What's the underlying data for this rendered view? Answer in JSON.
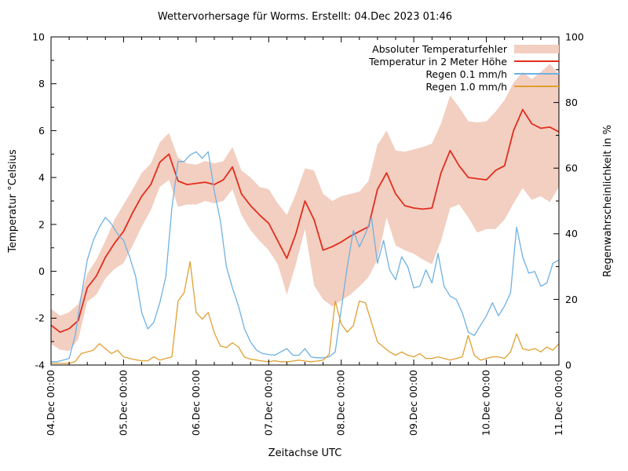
{
  "title": "Wettervorhersage für Worms. Erstellt: 04.Dec 2023 01:46",
  "xlabel": "Zeitachse UTC",
  "ylabel_left": "Temperatur °Celsius",
  "ylabel_right": "Regenwahrscheinlichkeit in %",
  "colors": {
    "band": "#f2cfc1",
    "temp": "#e22d1e",
    "rain01": "#6fb1e2",
    "rain10": "#dfa032",
    "axis": "#000000",
    "background": "#ffffff"
  },
  "legend": [
    {
      "label": "Absoluter Temperaturfehler",
      "type": "band",
      "color": "#f2cfc1"
    },
    {
      "label": "Temperatur in 2 Meter Höhe",
      "type": "line",
      "color": "#e22d1e"
    },
    {
      "label": "Regen 0.1 mm/h",
      "type": "line",
      "color": "#6fb1e2"
    },
    {
      "label": "Regen 1.0 mm/h",
      "type": "line",
      "color": "#dfa032"
    }
  ],
  "axes": {
    "x_ticks": {
      "hours": [
        0,
        24,
        48,
        72,
        96,
        120,
        144,
        168
      ],
      "labels": [
        "04.Dec 00:00",
        "05.Dec 00:00",
        "06.Dec 00:00",
        "07.Dec 00:00",
        "08.Dec 00:00",
        "09.Dec 00:00",
        "10.Dec 00:00",
        "11.Dec 00:00"
      ],
      "minor_step_hours": 6
    },
    "y_left_ticks": {
      "values": [
        -4,
        -2,
        0,
        2,
        4,
        6,
        8,
        10
      ],
      "minor_step": 1
    },
    "y_right_ticks": {
      "values": [
        0,
        20,
        40,
        60,
        80,
        100
      ],
      "minor_step": 10
    }
  },
  "chart_data": {
    "type": "line",
    "title": "Wettervorhersage für Worms. Erstellt: 04.Dec 2023 01:46",
    "xlabel": "Zeitachse UTC",
    "ylabel": "Temperatur °Celsius",
    "y2label": "Regenwahrscheinlichkeit in %",
    "x_unit": "hours since 04.Dec 2023 00:00 UTC",
    "x_range": [
      0,
      168
    ],
    "ylim_left": [
      -4,
      10
    ],
    "ylim_right": [
      0,
      100
    ],
    "grid": false,
    "legend_position": "top-right-inside",
    "series": [
      {
        "name": "Absoluter Temperaturfehler",
        "kind": "band",
        "axis": "left",
        "start_hour": 0,
        "step_hours": 3,
        "upper": [
          -1.6,
          -1.9,
          -1.75,
          -1.4,
          -0.1,
          0.5,
          1.3,
          2.2,
          2.85,
          3.5,
          4.2,
          4.6,
          5.5,
          5.9,
          4.85,
          4.6,
          4.55,
          4.7,
          4.6,
          4.7,
          5.3,
          4.3,
          4.0,
          3.6,
          3.5,
          2.9,
          2.4,
          3.3,
          4.4,
          4.3,
          3.3,
          3.0,
          3.2,
          3.3,
          3.4,
          3.85,
          5.4,
          6.0,
          5.15,
          5.1,
          5.2,
          5.3,
          5.45,
          6.3,
          7.5,
          7.0,
          6.4,
          6.35,
          6.4,
          6.8,
          7.3,
          8.05,
          8.5,
          8.2,
          8.5,
          8.85,
          8.4
        ],
        "lower": [
          -3.1,
          -3.35,
          -3.4,
          -2.9,
          -1.3,
          -1.0,
          -0.3,
          0.1,
          0.35,
          1.1,
          1.9,
          2.6,
          3.6,
          3.9,
          2.75,
          2.85,
          2.85,
          3.0,
          2.9,
          3.0,
          3.5,
          2.4,
          1.75,
          1.3,
          0.9,
          0.3,
          -1.0,
          0.3,
          1.8,
          -0.6,
          -1.2,
          -1.5,
          -1.25,
          -1.0,
          -0.65,
          -0.25,
          0.5,
          2.3,
          1.1,
          0.9,
          0.75,
          0.5,
          0.3,
          1.3,
          2.7,
          2.85,
          2.3,
          1.65,
          1.8,
          1.8,
          2.2,
          2.9,
          3.55,
          3.05,
          3.2,
          2.95,
          3.6
        ]
      },
      {
        "name": "Temperatur in 2 Meter Höhe",
        "kind": "line",
        "axis": "left",
        "unit": "°C",
        "start_hour": 0,
        "step_hours": 3,
        "values": [
          -2.3,
          -2.6,
          -2.45,
          -2.1,
          -0.7,
          -0.2,
          0.6,
          1.2,
          1.7,
          2.5,
          3.2,
          3.7,
          4.65,
          5.0,
          3.85,
          3.7,
          3.75,
          3.8,
          3.7,
          3.9,
          4.45,
          3.3,
          2.8,
          2.4,
          2.05,
          1.3,
          0.55,
          1.6,
          3.0,
          2.2,
          0.9,
          1.05,
          1.25,
          1.5,
          1.7,
          1.9,
          3.5,
          4.2,
          3.3,
          2.8,
          2.7,
          2.65,
          2.7,
          4.2,
          5.15,
          4.5,
          4.0,
          3.95,
          3.9,
          4.3,
          4.5,
          6.0,
          6.9,
          6.3,
          6.1,
          6.15,
          5.95
        ]
      },
      {
        "name": "Regen 0.1 mm/h",
        "kind": "line",
        "axis": "right",
        "unit": "%",
        "start_hour": 0,
        "step_hours": 2,
        "values": [
          1,
          1,
          1.5,
          2,
          9,
          21,
          32,
          38,
          42,
          45,
          43,
          40,
          38,
          33,
          27,
          16,
          11,
          13,
          19,
          27,
          48,
          62,
          62,
          64,
          65,
          63,
          65,
          53,
          44,
          30,
          23.5,
          18,
          11,
          7,
          4.5,
          3.5,
          3.2,
          3,
          4,
          5,
          3,
          3,
          5,
          2.5,
          2.2,
          2.2,
          2.5,
          4,
          17,
          30,
          41,
          36,
          40,
          45,
          31,
          38,
          29,
          26,
          33,
          30,
          23.5,
          24,
          29,
          25,
          34,
          24,
          21,
          20,
          16,
          10,
          9,
          12,
          15,
          19,
          15,
          18,
          22,
          42,
          33,
          28,
          28.5,
          24,
          25,
          31,
          32
        ]
      },
      {
        "name": "Regen 1.0 mm/h",
        "kind": "line",
        "axis": "right",
        "unit": "%",
        "start_hour": 0,
        "step_hours": 2,
        "values": [
          0.5,
          0.5,
          0.5,
          0.5,
          1,
          3.5,
          4,
          4.5,
          6.5,
          5,
          3.5,
          4.5,
          2.5,
          2,
          1.6,
          1.3,
          1.3,
          2.5,
          1.5,
          2,
          2.5,
          19.5,
          22,
          31.5,
          16,
          14,
          16,
          9.8,
          5.8,
          5.3,
          6.8,
          5.5,
          2.4,
          1.8,
          1.5,
          1.2,
          1,
          1.3,
          1,
          1,
          1.2,
          1.5,
          1.2,
          1,
          1.2,
          1.5,
          3.2,
          19.5,
          12.5,
          10,
          12,
          19.5,
          19,
          13,
          7,
          5.5,
          4,
          3,
          4,
          3,
          2.5,
          3.5,
          2,
          2,
          2.5,
          2,
          1.5,
          2,
          2.5,
          9,
          3,
          1.5,
          2,
          2.5,
          2.5,
          2,
          4,
          9.5,
          5,
          4.5,
          5,
          4,
          5.5,
          4.5,
          6.5
        ]
      }
    ]
  }
}
